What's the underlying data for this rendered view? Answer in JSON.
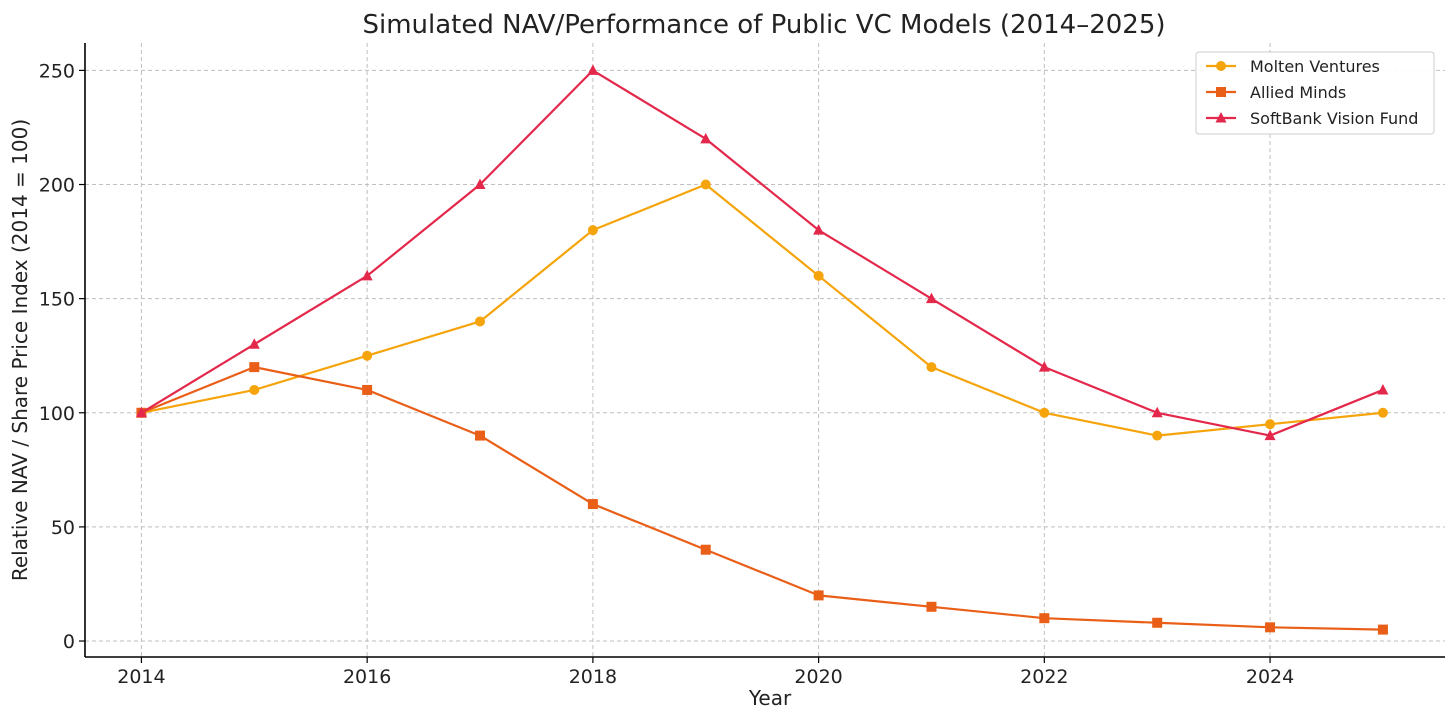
{
  "chart_data": {
    "type": "line",
    "title": "Simulated NAV/Performance of Public VC Models (2014–2025)",
    "xlabel": "Year",
    "ylabel": "Relative NAV / Share Price Index (2014 = 100)",
    "x": [
      2014,
      2015,
      2016,
      2017,
      2018,
      2019,
      2020,
      2021,
      2022,
      2023,
      2024,
      2025
    ],
    "xlim": [
      2013.5,
      2025.55
    ],
    "ylim": [
      -7,
      262
    ],
    "xticks": [
      2014,
      2016,
      2018,
      2020,
      2022,
      2024
    ],
    "yticks": [
      0,
      50,
      100,
      150,
      200,
      250
    ],
    "grid": true,
    "legend_position": "top-right",
    "series": [
      {
        "name": "Molten Ventures",
        "color": "#F5A40C",
        "marker": "circle",
        "values": [
          100,
          110,
          125,
          140,
          180,
          200,
          160,
          120,
          100,
          90,
          95,
          100
        ]
      },
      {
        "name": "Allied Minds",
        "color": "#EA5F18",
        "marker": "square",
        "values": [
          100,
          120,
          110,
          90,
          60,
          40,
          20,
          15,
          10,
          8,
          6,
          5
        ]
      },
      {
        "name": "SoftBank Vision Fund",
        "color": "#E3284B",
        "marker": "triangle",
        "values": [
          100,
          130,
          160,
          200,
          250,
          220,
          180,
          150,
          120,
          100,
          90,
          110
        ]
      }
    ]
  }
}
